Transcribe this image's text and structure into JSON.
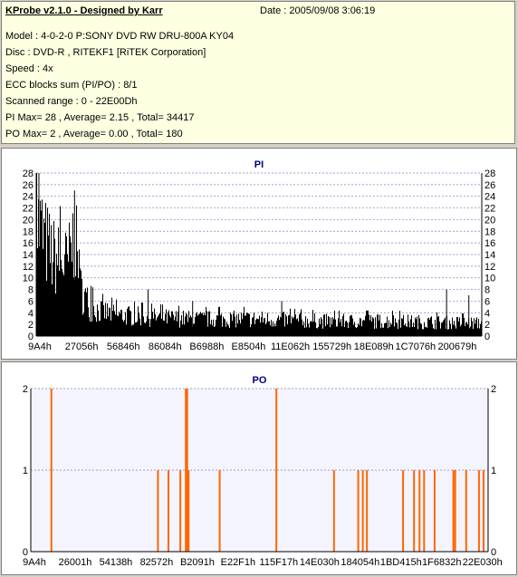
{
  "info": {
    "title": "KProbe v2.1.0 - Designed by Karr",
    "date": "Date : 2005/09/08 3:06:19",
    "model": "Model : 4-0-2-0 P:SONY    DVD RW DRU-800A  KY04",
    "disc": "Disc : DVD-R , RITEKF1 [RiTEK Corporation]",
    "speed": "Speed : 4x",
    "ecc": "ECC blocks sum (PI/PO) : 8/1",
    "range": "Scanned range : 0 - 22E00Dh",
    "pi_stats": "PI Max= 28 , Average= 2.15 , Total= 34417",
    "po_stats": "PO Max= 2 , Average= 0.00 , Total= 180"
  },
  "colors": {
    "pi_bar": "#000000",
    "po_bar": "#ff6600",
    "po_background": "#f4f4ff",
    "title_text": "#000080"
  },
  "chart_data": [
    {
      "type": "bar",
      "title": "PI",
      "ylim": [
        0,
        28
      ],
      "yticks": [
        0,
        2,
        4,
        6,
        8,
        10,
        12,
        14,
        16,
        18,
        20,
        22,
        24,
        26,
        28
      ],
      "xlabels": [
        "9A4h",
        "27056h",
        "56846h",
        "86084h",
        "B6988h",
        "E8504h",
        "11E062h",
        "155729h",
        "18E089h",
        "1C7076h",
        "200679h"
      ],
      "grid": true,
      "profile": [
        [
          0.0,
          27
        ],
        [
          0.01,
          25
        ],
        [
          0.02,
          22
        ],
        [
          0.035,
          19
        ],
        [
          0.05,
          18
        ],
        [
          0.07,
          17
        ],
        [
          0.085,
          24
        ],
        [
          0.09,
          20
        ],
        [
          0.095,
          12
        ],
        [
          0.105,
          10
        ],
        [
          0.12,
          7
        ],
        [
          0.14,
          6
        ],
        [
          0.18,
          5
        ],
        [
          0.25,
          4.5
        ],
        [
          0.35,
          4
        ],
        [
          0.5,
          4
        ],
        [
          0.65,
          3.5
        ],
        [
          0.8,
          3.5
        ],
        [
          1.0,
          3
        ]
      ],
      "spikes": [
        {
          "x": 0.005,
          "y": 28
        },
        {
          "x": 0.085,
          "y": 25
        },
        {
          "x": 0.25,
          "y": 8
        },
        {
          "x": 0.35,
          "y": 6
        },
        {
          "x": 0.55,
          "y": 6
        },
        {
          "x": 0.92,
          "y": 8
        },
        {
          "x": 0.97,
          "y": 7
        }
      ]
    },
    {
      "type": "bar",
      "title": "PO",
      "ylim": [
        0,
        2
      ],
      "yticks": [
        0,
        1,
        2
      ],
      "xlabels": [
        "9A4h",
        "26001h",
        "54138h",
        "82572h",
        "B2091h",
        "E22F1h",
        "115F17h",
        "14E030h",
        "184054h",
        "1BD415h",
        "1F6832h",
        "22E030h"
      ],
      "grid": true,
      "bars": [
        {
          "x": 0.045,
          "y": 2
        },
        {
          "x": 0.278,
          "y": 1
        },
        {
          "x": 0.301,
          "y": 1
        },
        {
          "x": 0.327,
          "y": 1
        },
        {
          "x": 0.339,
          "y": 2
        },
        {
          "x": 0.342,
          "y": 2
        },
        {
          "x": 0.345,
          "y": 1
        },
        {
          "x": 0.413,
          "y": 1
        },
        {
          "x": 0.537,
          "y": 2
        },
        {
          "x": 0.663,
          "y": 1
        },
        {
          "x": 0.716,
          "y": 1
        },
        {
          "x": 0.726,
          "y": 1
        },
        {
          "x": 0.735,
          "y": 1
        },
        {
          "x": 0.814,
          "y": 1
        },
        {
          "x": 0.838,
          "y": 1
        },
        {
          "x": 0.85,
          "y": 1
        },
        {
          "x": 0.86,
          "y": 1
        },
        {
          "x": 0.883,
          "y": 1
        },
        {
          "x": 0.924,
          "y": 1
        },
        {
          "x": 0.928,
          "y": 1
        },
        {
          "x": 0.952,
          "y": 1
        },
        {
          "x": 0.98,
          "y": 1
        },
        {
          "x": 0.99,
          "y": 1
        }
      ]
    }
  ]
}
